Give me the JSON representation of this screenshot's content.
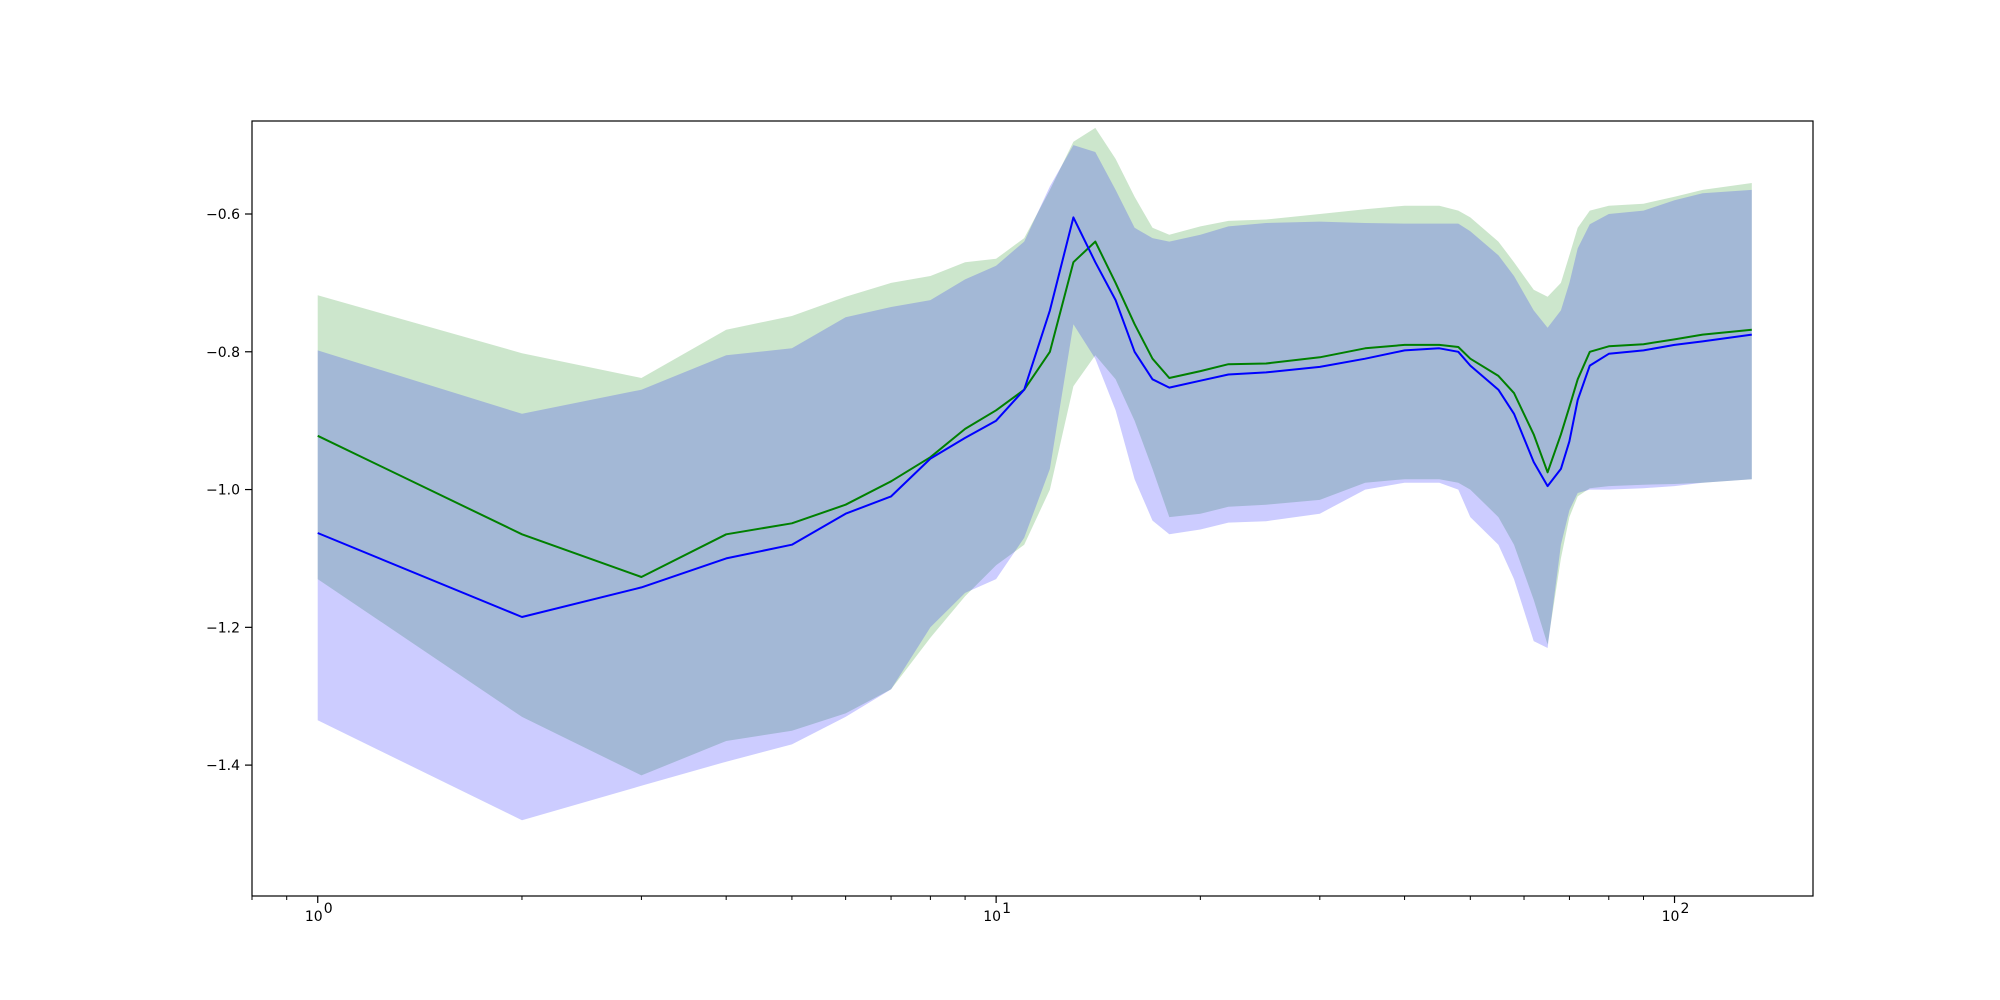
{
  "chart_data": {
    "type": "line",
    "x_scale": "log",
    "xlim": [
      0.8,
      160
    ],
    "ylim": [
      -1.59,
      -0.465
    ],
    "grid": false,
    "legend": "none",
    "x_ticks": [
      {
        "value": 1,
        "label": "10",
        "exp": "0"
      },
      {
        "value": 10,
        "label": "10",
        "exp": "1"
      },
      {
        "value": 100,
        "label": "10",
        "exp": "2"
      }
    ],
    "y_ticks": [
      {
        "value": -0.6,
        "label": "−0.6"
      },
      {
        "value": -0.8,
        "label": "−0.8"
      },
      {
        "value": -1.0,
        "label": "−1.0"
      },
      {
        "value": -1.2,
        "label": "−1.2"
      },
      {
        "value": -1.4,
        "label": "−1.4"
      }
    ],
    "series": [
      {
        "color": "#008000",
        "band_color": "#008000",
        "x": [
          1,
          2,
          3,
          4,
          5,
          6,
          7,
          8,
          9,
          10,
          11,
          12,
          13,
          14,
          15,
          16,
          17,
          18,
          20,
          22,
          25,
          30,
          35,
          40,
          45,
          48,
          50,
          55,
          58,
          62,
          65,
          68,
          70,
          72,
          75,
          80,
          90,
          100,
          110,
          130
        ],
        "y": [
          -0.922,
          -1.065,
          -1.127,
          -1.065,
          -1.049,
          -1.022,
          -0.988,
          -0.953,
          -0.912,
          -0.885,
          -0.855,
          -0.8,
          -0.67,
          -0.64,
          -0.7,
          -0.76,
          -0.81,
          -0.838,
          -0.828,
          -0.818,
          -0.817,
          -0.808,
          -0.795,
          -0.79,
          -0.79,
          -0.793,
          -0.81,
          -0.835,
          -0.86,
          -0.92,
          -0.975,
          -0.92,
          -0.88,
          -0.84,
          -0.8,
          -0.792,
          -0.789,
          -0.782,
          -0.775,
          -0.768
        ],
        "upper": [
          -0.718,
          -0.802,
          -0.838,
          -0.768,
          -0.748,
          -0.72,
          -0.7,
          -0.69,
          -0.67,
          -0.665,
          -0.635,
          -0.565,
          -0.495,
          -0.475,
          -0.52,
          -0.575,
          -0.62,
          -0.63,
          -0.618,
          -0.61,
          -0.608,
          -0.6,
          -0.593,
          -0.588,
          -0.588,
          -0.595,
          -0.605,
          -0.64,
          -0.67,
          -0.71,
          -0.72,
          -0.7,
          -0.66,
          -0.62,
          -0.595,
          -0.588,
          -0.585,
          -0.575,
          -0.565,
          -0.555
        ],
        "lower": [
          -1.13,
          -1.33,
          -1.415,
          -1.365,
          -1.35,
          -1.325,
          -1.29,
          -1.215,
          -1.155,
          -1.11,
          -1.08,
          -1.0,
          -0.85,
          -0.805,
          -0.84,
          -0.9,
          -0.97,
          -1.04,
          -1.035,
          -1.025,
          -1.022,
          -1.015,
          -0.99,
          -0.985,
          -0.985,
          -0.99,
          -1.0,
          -1.04,
          -1.08,
          -1.16,
          -1.225,
          -1.1,
          -1.04,
          -1.01,
          -0.998,
          -0.995,
          -0.993,
          -0.992,
          -0.99,
          -0.985
        ]
      },
      {
        "color": "#0000ff",
        "band_color": "#0000ff",
        "x": [
          1,
          2,
          3,
          4,
          5,
          6,
          7,
          8,
          9,
          10,
          11,
          12,
          13,
          14,
          15,
          16,
          17,
          18,
          20,
          22,
          25,
          30,
          35,
          40,
          45,
          48,
          50,
          55,
          58,
          62,
          65,
          68,
          70,
          72,
          75,
          80,
          90,
          100,
          110,
          130
        ],
        "y": [
          -1.063,
          -1.185,
          -1.142,
          -1.1,
          -1.08,
          -1.035,
          -1.01,
          -0.955,
          -0.925,
          -0.9,
          -0.855,
          -0.74,
          -0.605,
          -0.67,
          -0.725,
          -0.8,
          -0.84,
          -0.852,
          -0.842,
          -0.833,
          -0.83,
          -0.822,
          -0.81,
          -0.798,
          -0.795,
          -0.8,
          -0.82,
          -0.855,
          -0.89,
          -0.96,
          -0.995,
          -0.97,
          -0.93,
          -0.87,
          -0.82,
          -0.803,
          -0.798,
          -0.79,
          -0.785,
          -0.775
        ],
        "upper": [
          -0.798,
          -0.89,
          -0.855,
          -0.805,
          -0.795,
          -0.75,
          -0.735,
          -0.725,
          -0.695,
          -0.675,
          -0.64,
          -0.56,
          -0.5,
          -0.51,
          -0.565,
          -0.62,
          -0.635,
          -0.64,
          -0.63,
          -0.618,
          -0.613,
          -0.611,
          -0.613,
          -0.614,
          -0.614,
          -0.614,
          -0.625,
          -0.66,
          -0.69,
          -0.74,
          -0.765,
          -0.74,
          -0.7,
          -0.65,
          -0.615,
          -0.6,
          -0.595,
          -0.58,
          -0.57,
          -0.565
        ],
        "lower": [
          -1.335,
          -1.48,
          -1.43,
          -1.395,
          -1.37,
          -1.33,
          -1.29,
          -1.2,
          -1.15,
          -1.13,
          -1.07,
          -0.97,
          -0.76,
          -0.81,
          -0.885,
          -0.985,
          -1.045,
          -1.065,
          -1.058,
          -1.048,
          -1.046,
          -1.035,
          -1.0,
          -0.99,
          -0.99,
          -1.0,
          -1.04,
          -1.08,
          -1.13,
          -1.22,
          -1.23,
          -1.08,
          -1.03,
          -1.005,
          -1.0,
          -1.0,
          -0.998,
          -0.995,
          -0.99,
          -0.985
        ]
      }
    ]
  }
}
